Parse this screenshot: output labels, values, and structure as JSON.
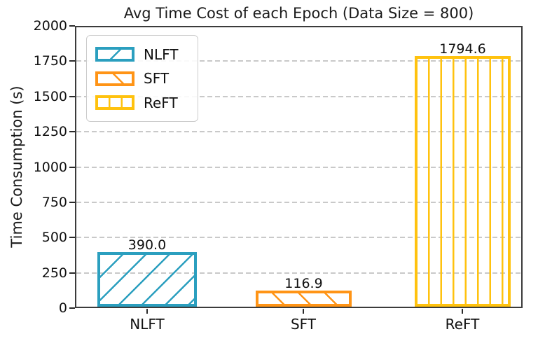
{
  "chart_data": {
    "type": "bar",
    "title": "Avg Time Cost of each Epoch (Data Size = 800)",
    "xlabel": "",
    "ylabel": "Time Consumption (s)",
    "categories": [
      "NLFT",
      "SFT",
      "ReFT"
    ],
    "values": [
      390.0,
      116.9,
      1794.6
    ],
    "value_labels": [
      "390.0",
      "116.9",
      "1794.6"
    ],
    "ylim": [
      0,
      2000
    ],
    "ytick_labels": [
      "2000",
      "1750",
      "1500",
      "1250",
      "1000",
      "750",
      "500",
      "250",
      "0"
    ],
    "grid": {
      "axis": "y",
      "style": "dashed",
      "color": "#c9c9c9"
    },
    "legend": {
      "position": "upper left",
      "entries": [
        {
          "label": "NLFT",
          "color": "#2b9fbf",
          "hatch": "/"
        },
        {
          "label": "SFT",
          "color": "#ff9416",
          "hatch": "\\"
        },
        {
          "label": "ReFT",
          "color": "#ffc20e",
          "hatch": "|"
        }
      ]
    }
  }
}
